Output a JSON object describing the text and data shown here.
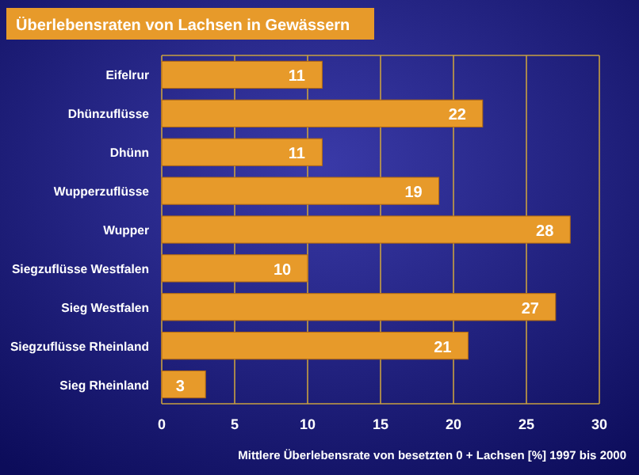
{
  "chart_data": {
    "type": "bar",
    "orientation": "horizontal",
    "title": "Überlebensraten von Lachsen in Gewässern",
    "xlabel": "Mittlere Überlebensrate von besetzten 0 + Lachsen [%] 1997 bis 2000",
    "categories": [
      "Eifelrur",
      "Dhünzuflüsse",
      "Dhünn",
      "Wupperzuflüsse",
      "Wupper",
      "Siegzuflüsse Westfalen",
      "Sieg Westfalen",
      "Siegzuflüsse Rheinland",
      "Sieg Rheinland"
    ],
    "values": [
      11,
      22,
      11,
      19,
      28,
      10,
      27,
      21,
      3
    ],
    "color": "#e79a2a",
    "xlim": [
      0,
      30
    ],
    "xticks": [
      0,
      5,
      10,
      15,
      20,
      25,
      30
    ],
    "grid": "x",
    "data_labels": true
  }
}
